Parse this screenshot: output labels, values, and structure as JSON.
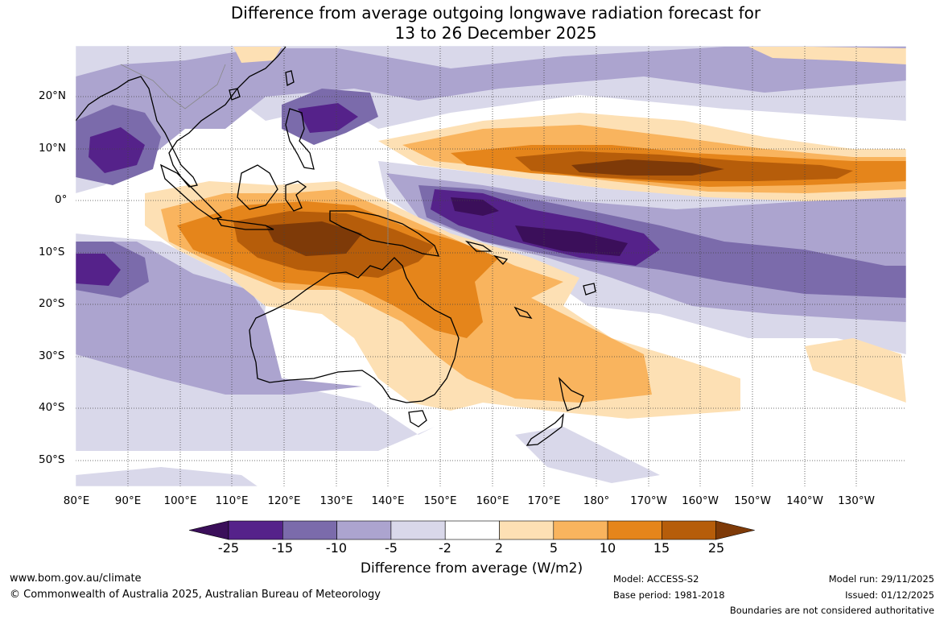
{
  "title": {
    "line1": "Difference from average outgoing longwave radiation forecast for",
    "line2": "13 to 26 December 2025"
  },
  "map": {
    "lat_labels": [
      "20°N",
      "10°N",
      "0°",
      "10°S",
      "20°S",
      "30°S",
      "40°S",
      "50°S"
    ],
    "lon_labels": [
      "80°E",
      "90°E",
      "100°E",
      "110°E",
      "120°E",
      "130°E",
      "140°E",
      "150°E",
      "160°E",
      "170°E",
      "180°",
      "170°W",
      "160°W",
      "150°W",
      "140°W",
      "130°W"
    ]
  },
  "colorbar": {
    "label": "Difference from average (W/m2)",
    "ticks": [
      "-25",
      "-15",
      "-10",
      "-5",
      "-2",
      "2",
      "5",
      "10",
      "15",
      "25"
    ],
    "colors": [
      "#3b0f5a",
      "#55228a",
      "#7b6bab",
      "#aca4cf",
      "#d9d8ea",
      "#ffffff",
      "#fde0b4",
      "#f9b45e",
      "#e5851b",
      "#b65d0a",
      "#7e3a08"
    ]
  },
  "footer": {
    "url": "www.bom.gov.au/climate",
    "copyright": "© Commonwealth of Australia 2025, Australian Bureau of Meteorology",
    "model": "Model: ACCESS-S2",
    "base_period": "Base period: 1981-2018",
    "model_run": "Model run: 29/11/2025",
    "issued": "Issued: 01/12/2025",
    "boundaries": "Boundaries are not considered authoritative"
  }
}
